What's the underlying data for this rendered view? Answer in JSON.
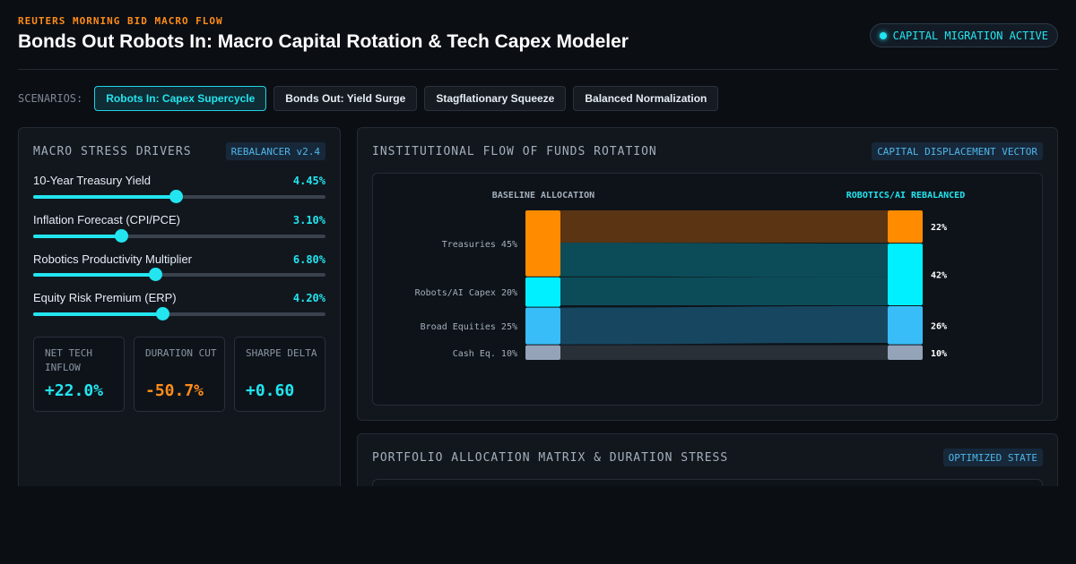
{
  "header": {
    "kicker": "REUTERS MORNING BID MACRO FLOW",
    "title": "Bonds Out Robots In: Macro Capital Rotation & Tech Capex Modeler",
    "status": "CAPITAL MIGRATION ACTIVE"
  },
  "scenarios": {
    "label": "SCENARIOS:",
    "items": [
      {
        "label": "Robots In: Capex Supercycle",
        "active": true
      },
      {
        "label": "Bonds Out: Yield Surge",
        "active": false
      },
      {
        "label": "Stagflationary Squeeze",
        "active": false
      },
      {
        "label": "Balanced Normalization",
        "active": false
      }
    ]
  },
  "drivers_panel": {
    "title": "MACRO STRESS DRIVERS",
    "tag": "REBALANCER v2.4",
    "drivers": [
      {
        "label": "10-Year Treasury Yield",
        "value": "4.45%",
        "level": 0.488
      },
      {
        "label": "Inflation Forecast (CPI/PCE)",
        "value": "3.10%",
        "level": 0.301
      },
      {
        "label": "Robotics Productivity Multiplier",
        "value": "6.80%",
        "level": 0.418
      },
      {
        "label": "Equity Risk Premium (ERP)",
        "value": "4.20%",
        "level": 0.442
      }
    ],
    "metrics": [
      {
        "label": "NET TECH INFLOW",
        "value": "+22.0%",
        "color": "#22e5f0"
      },
      {
        "label": "DURATION CUT",
        "value": "-50.7%",
        "color": "#ff8c1a"
      },
      {
        "label": "SHARPE DELTA",
        "value": "+0.60",
        "color": "#22e5f0"
      }
    ]
  },
  "flow_panel": {
    "title": "INSTITUTIONAL FLOW OF FUNDS ROTATION",
    "tag": "CAPITAL DISPLACEMENT VECTOR",
    "left_header": "BASELINE ALLOCATION",
    "right_header": "ROBOTICS/AI REBALANCED"
  },
  "matrix_panel": {
    "title": "PORTFOLIO ALLOCATION MATRIX & DURATION STRESS",
    "tag": "OPTIMIZED STATE"
  },
  "chart_data": {
    "type": "sankey",
    "nodes_left": [
      {
        "label": "Treasuries 45%",
        "value": 45,
        "color": "#ff8c00"
      },
      {
        "label": "Robots/AI Capex 20%",
        "value": 20,
        "color": "#00f0ff"
      },
      {
        "label": "Broad Equities 25%",
        "value": 25,
        "color": "#38bdf8"
      },
      {
        "label": "Cash Eq. 10%",
        "value": 10,
        "color": "#94a3b8"
      }
    ],
    "nodes_right": [
      {
        "label": "22%",
        "value": 22,
        "color": "#ff8c00"
      },
      {
        "label": "42%",
        "value": 42,
        "color": "#00f0ff"
      },
      {
        "label": "26%",
        "value": 26,
        "color": "#38bdf8"
      },
      {
        "label": "10%",
        "value": 10,
        "color": "#94a3b8"
      }
    ],
    "flows": [
      {
        "from": 0,
        "to": 0,
        "value": 22,
        "color": "#5a3413"
      },
      {
        "from": 0,
        "to": 1,
        "value": 23,
        "color": "#0c4c59"
      },
      {
        "from": 1,
        "to": 1,
        "value": 19,
        "color": "#0c4c59"
      },
      {
        "from": 2,
        "to": 2,
        "value": 25,
        "color": "#174760"
      },
      {
        "from": 3,
        "to": 3,
        "value": 10,
        "color": "#2a3038"
      }
    ]
  }
}
